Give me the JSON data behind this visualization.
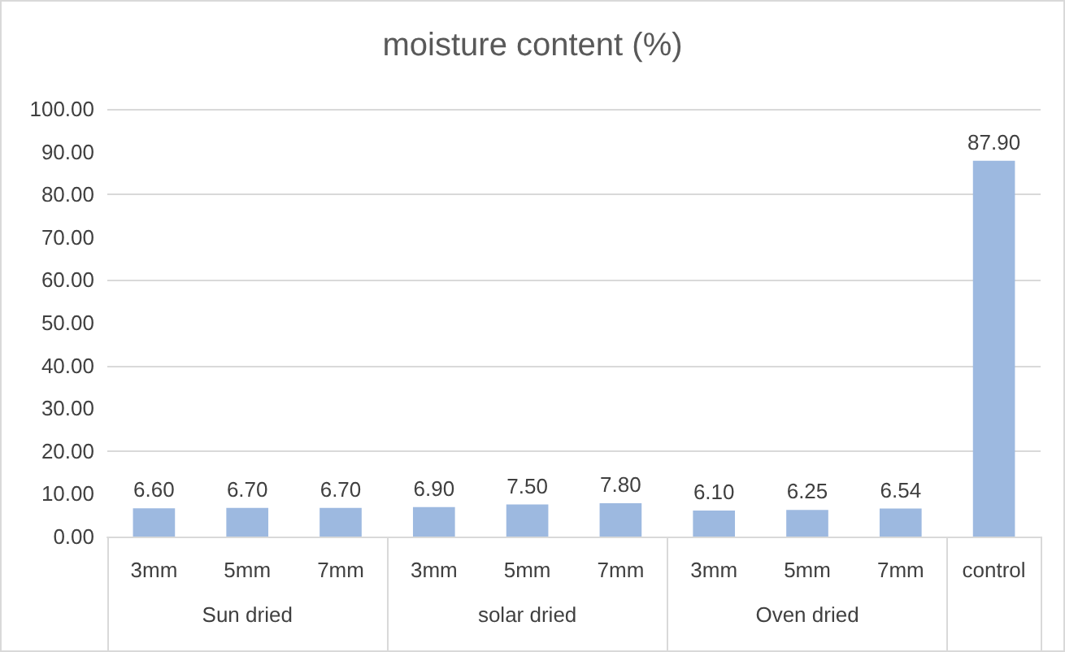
{
  "chart_data": {
    "type": "bar",
    "title": "moisture content (%)",
    "categories": [
      "3mm",
      "5mm",
      "7mm",
      "3mm",
      "5mm",
      "7mm",
      "3mm",
      "5mm",
      "7mm",
      "control"
    ],
    "values": [
      6.6,
      6.7,
      6.7,
      6.9,
      7.5,
      7.8,
      6.1,
      6.25,
      6.54,
      87.9
    ],
    "value_labels": [
      "6.60",
      "6.70",
      "6.70",
      "6.90",
      "7.50",
      "7.80",
      "6.10",
      "6.25",
      "6.54",
      "87.90"
    ],
    "color": "#9db9e0",
    "annotations": [
      "Sun dried",
      "solar dried",
      "Oven dried"
    ],
    "ylim": [
      0,
      100
    ],
    "yticks": [
      {
        "value": 0,
        "label": "0.00"
      },
      {
        "value": 10,
        "label": "10.00"
      },
      {
        "value": 20,
        "label": "20.00"
      },
      {
        "value": 30,
        "label": "30.00"
      },
      {
        "value": 40,
        "label": "40.00"
      },
      {
        "value": 50,
        "label": "50.00"
      },
      {
        "value": 60,
        "label": "60.00"
      },
      {
        "value": 70,
        "label": "70.00"
      },
      {
        "value": 80,
        "label": "80.00"
      },
      {
        "value": 90,
        "label": "90.00"
      },
      {
        "value": 100,
        "label": "100.00"
      }
    ],
    "grid": "y"
  }
}
